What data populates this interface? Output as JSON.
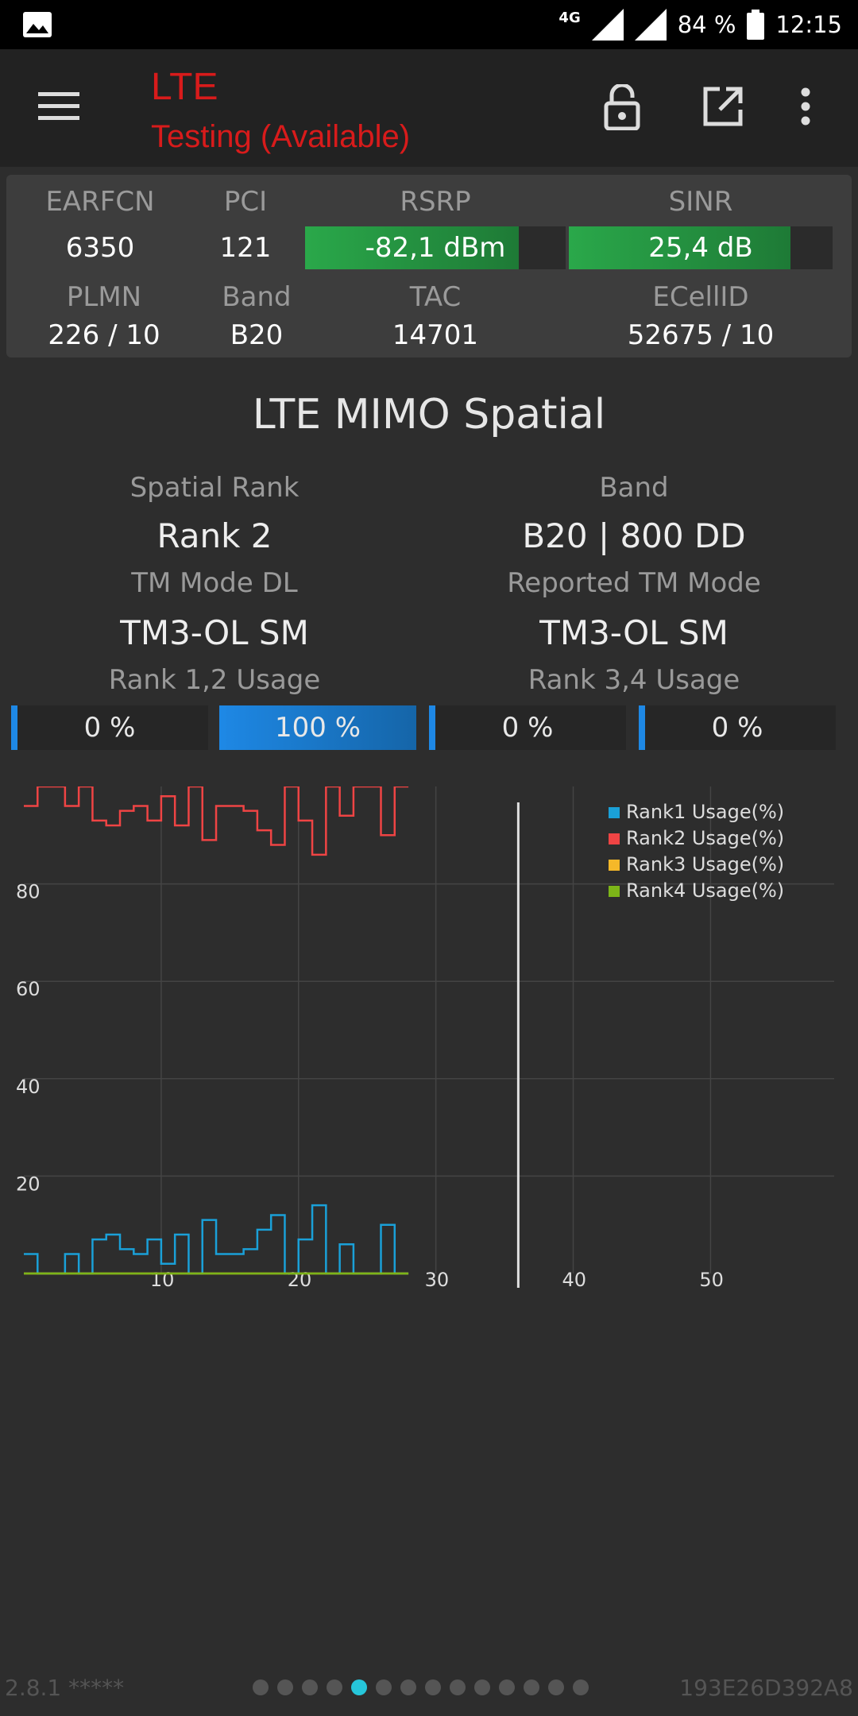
{
  "status_bar": {
    "network": "4G",
    "battery": "84 %",
    "time": "12:15"
  },
  "app_bar": {
    "title": "LTE",
    "subtitle": "Testing (Available)"
  },
  "cell_info": {
    "earfcn": {
      "label": "EARFCN",
      "value": "6350"
    },
    "pci": {
      "label": "PCI",
      "value": "121"
    },
    "rsrp": {
      "label": "RSRP",
      "value": "-82,1 dBm",
      "level": 0.82
    },
    "sinr": {
      "label": "SINR",
      "value": "25,4 dB",
      "level": 0.84
    },
    "plmn": {
      "label": "PLMN",
      "value": "226 / 10"
    },
    "band": {
      "label": "Band",
      "value": "B20"
    },
    "tac": {
      "label": "TAC",
      "value": "14701"
    },
    "ecellid": {
      "label": "ECellID",
      "value": "52675 / 10"
    }
  },
  "mimo": {
    "title": "LTE MIMO Spatial",
    "spatial_rank_label": "Spatial Rank",
    "spatial_rank_value": "Rank 2",
    "band_label": "Band",
    "band_value": "B20 | 800 DD",
    "tm_mode_dl_label": "TM Mode DL",
    "tm_mode_dl_value": "TM3-OL SM",
    "reported_tm_label": "Reported TM Mode",
    "reported_tm_value": "TM3-OL SM",
    "rank12_label": "Rank 1,2 Usage",
    "rank34_label": "Rank 3,4 Usage",
    "usage": [
      {
        "text": "0 %",
        "percent": 0
      },
      {
        "text": "100 %",
        "percent": 100
      },
      {
        "text": "0 %",
        "percent": 0
      },
      {
        "text": "0 %",
        "percent": 0
      }
    ]
  },
  "chart_data": {
    "type": "line",
    "x_ticks": [
      "10",
      "20",
      "30",
      "40",
      "50"
    ],
    "y_ticks": [
      "20",
      "40",
      "60",
      "80"
    ],
    "xlim": [
      0,
      59
    ],
    "ylim": [
      0,
      100
    ],
    "grid": true,
    "legend_placement": "top-right",
    "marker_x": 36,
    "series": [
      {
        "name": "Rank1 Usage(%)",
        "color": "#1aa0d8",
        "values": [
          4,
          0,
          0,
          4,
          0,
          7,
          8,
          5,
          4,
          7,
          2,
          8,
          0,
          11,
          4,
          4,
          5,
          9,
          12,
          0,
          7,
          14,
          0,
          6,
          0,
          0,
          10,
          0
        ]
      },
      {
        "name": "Rank2 Usage(%)",
        "color": "#ef4444",
        "values": [
          96,
          100,
          100,
          96,
          100,
          93,
          92,
          95,
          96,
          93,
          98,
          92,
          100,
          89,
          96,
          96,
          95,
          91,
          88,
          100,
          93,
          86,
          100,
          94,
          100,
          100,
          90,
          100
        ]
      },
      {
        "name": "Rank3 Usage(%)",
        "color": "#f5b829",
        "values": [
          0,
          0,
          0,
          0,
          0,
          0,
          0,
          0,
          0,
          0,
          0,
          0,
          0,
          0,
          0,
          0,
          0,
          0,
          0,
          0,
          0,
          0,
          0,
          0,
          0,
          0,
          0,
          0
        ]
      },
      {
        "name": "Rank4 Usage(%)",
        "color": "#7cb518",
        "values": [
          0,
          0,
          0,
          0,
          0,
          0,
          0,
          0,
          0,
          0,
          0,
          0,
          0,
          0,
          0,
          0,
          0,
          0,
          0,
          0,
          0,
          0,
          0,
          0,
          0,
          0,
          0,
          0
        ]
      }
    ]
  },
  "footer": {
    "version": "2.8.1 *****",
    "device_id": "193E26D392A8",
    "page_count": 14,
    "active_page": 5
  }
}
